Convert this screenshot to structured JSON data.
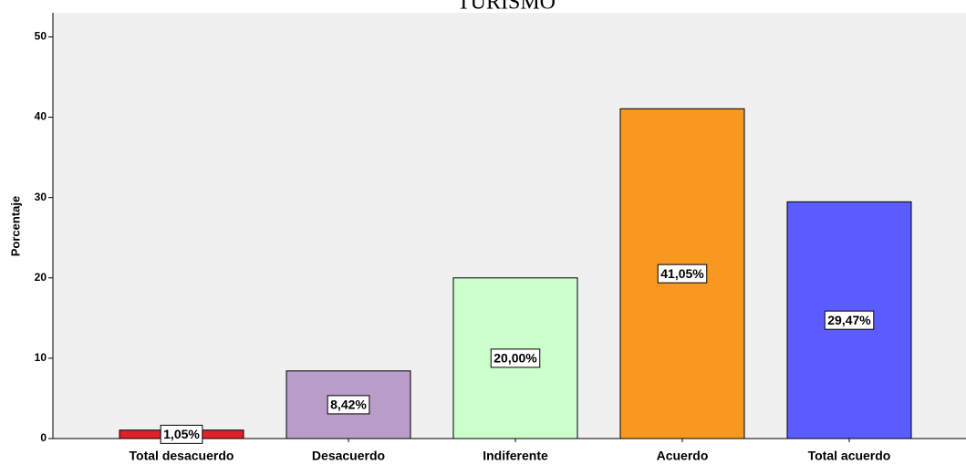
{
  "chart_data": {
    "type": "bar",
    "title": "TURISMO",
    "y_label": "Porcentaje",
    "categories": [
      "Total desacuerdo",
      "Desacuerdo",
      "Indiferente",
      "Acuerdo",
      "Total acuerdo"
    ],
    "values": [
      1.05,
      8.42,
      20.0,
      41.05,
      29.47
    ],
    "value_labels": [
      "1,05%",
      "8,42%",
      "20,00%",
      "41,05%",
      "29,47%"
    ],
    "colors": [
      "#e02028",
      "#b99cca",
      "#ccffcc",
      "#f89820",
      "#5b5cff"
    ],
    "ylim": [
      0,
      53
    ],
    "yticks": [
      0,
      10,
      20,
      30,
      40,
      50
    ]
  }
}
